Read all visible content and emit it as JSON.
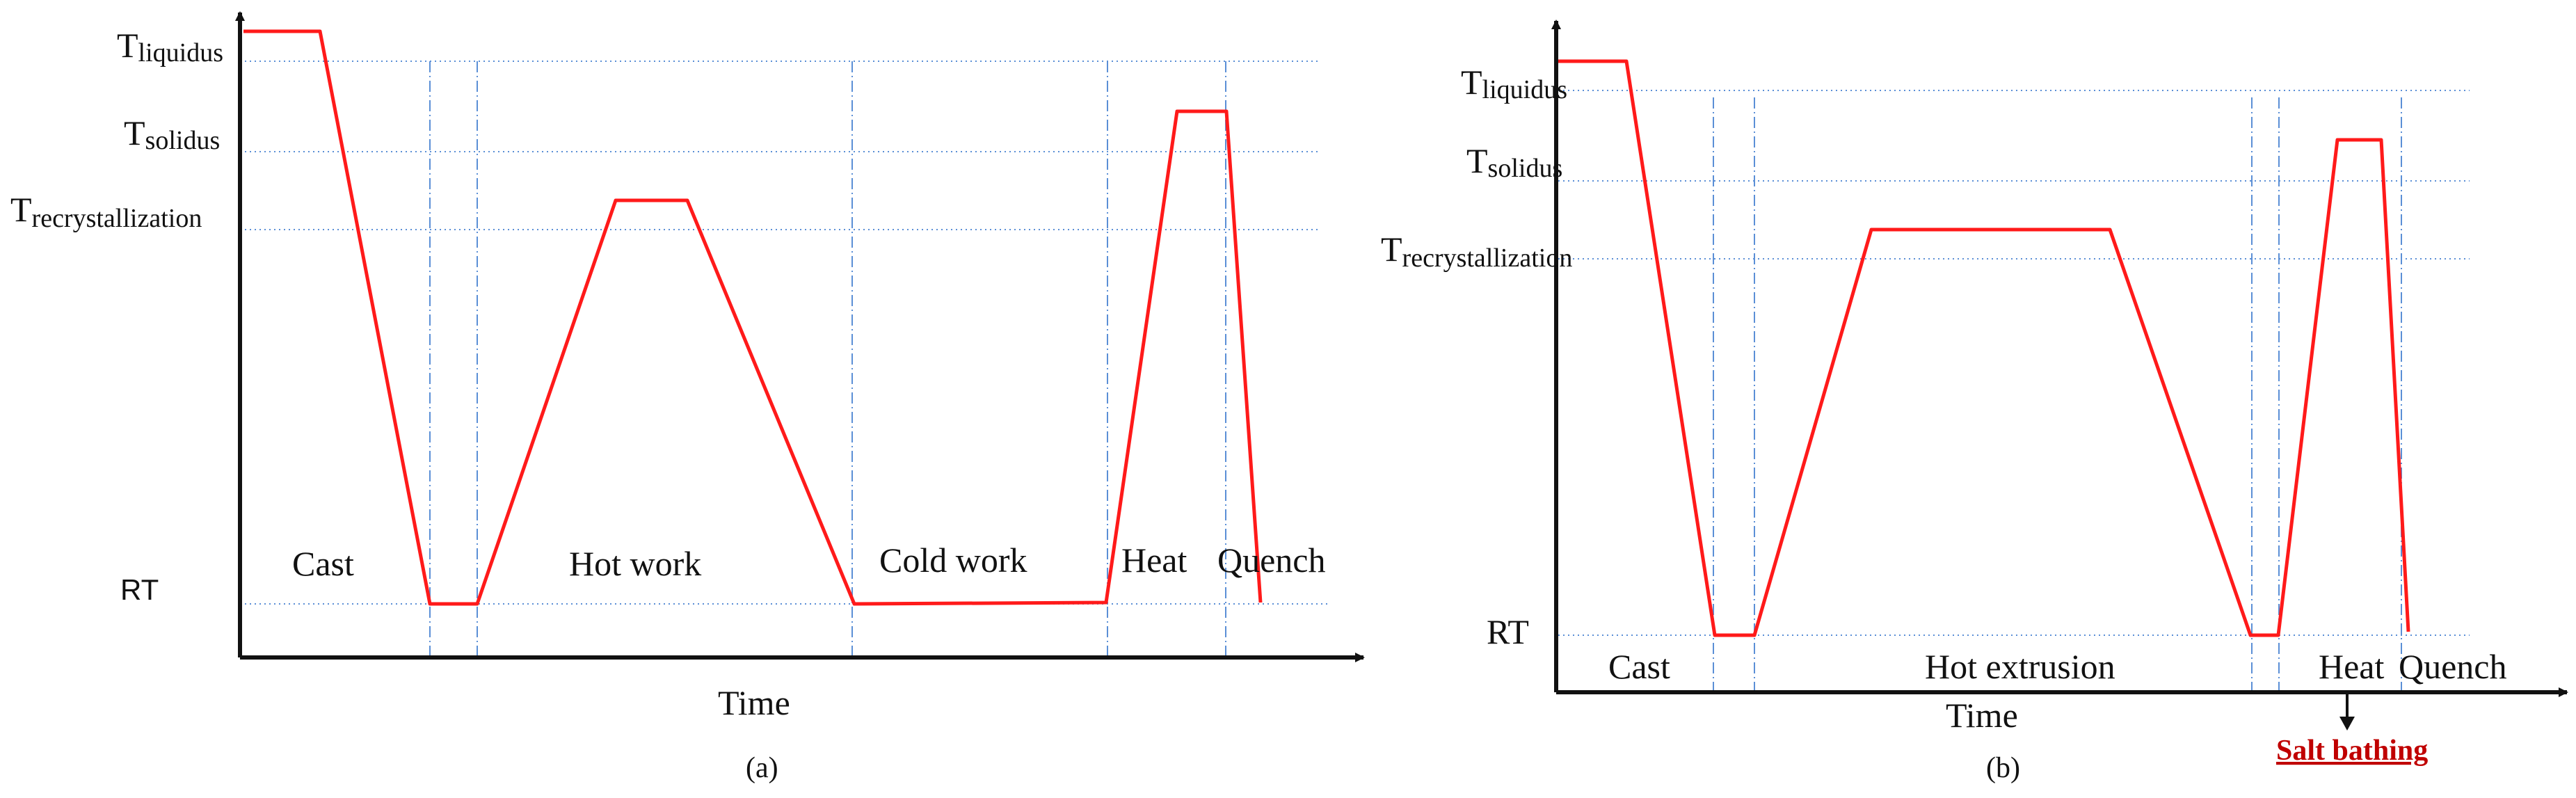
{
  "colors": {
    "curve": "#ff1a1a",
    "axis": "#111111",
    "level_line": "#5b8fd6",
    "phase_line": "#5b8fd6",
    "salt_label": "#c00000"
  },
  "icons": [
    "axis-arrow-icon",
    "down-arrow-icon"
  ],
  "panel_a": {
    "caption": "(a)",
    "x_axis_label": "Time",
    "y_levels": {
      "liquidus": {
        "main": "T",
        "sub": "liquidus"
      },
      "solidus": {
        "main": "T",
        "sub": "solidus"
      },
      "recrystallization": {
        "main": "T",
        "sub": "recrystallization"
      },
      "room": "RT"
    },
    "phases": [
      "Cast",
      "Hot work",
      "Cold work",
      "Heat",
      "Quench"
    ]
  },
  "panel_b": {
    "caption": "(b)",
    "x_axis_label": "Time",
    "y_levels": {
      "liquidus": {
        "main": "T",
        "sub": "liquidus"
      },
      "solidus": {
        "main": "T",
        "sub": "solidus"
      },
      "recrystallization": {
        "main": "T",
        "sub": "recrystallization"
      },
      "room": "RT"
    },
    "phases": [
      "Cast",
      "Hot extrusion",
      "Heat",
      "Quench"
    ],
    "callout": "Salt bathing"
  }
}
